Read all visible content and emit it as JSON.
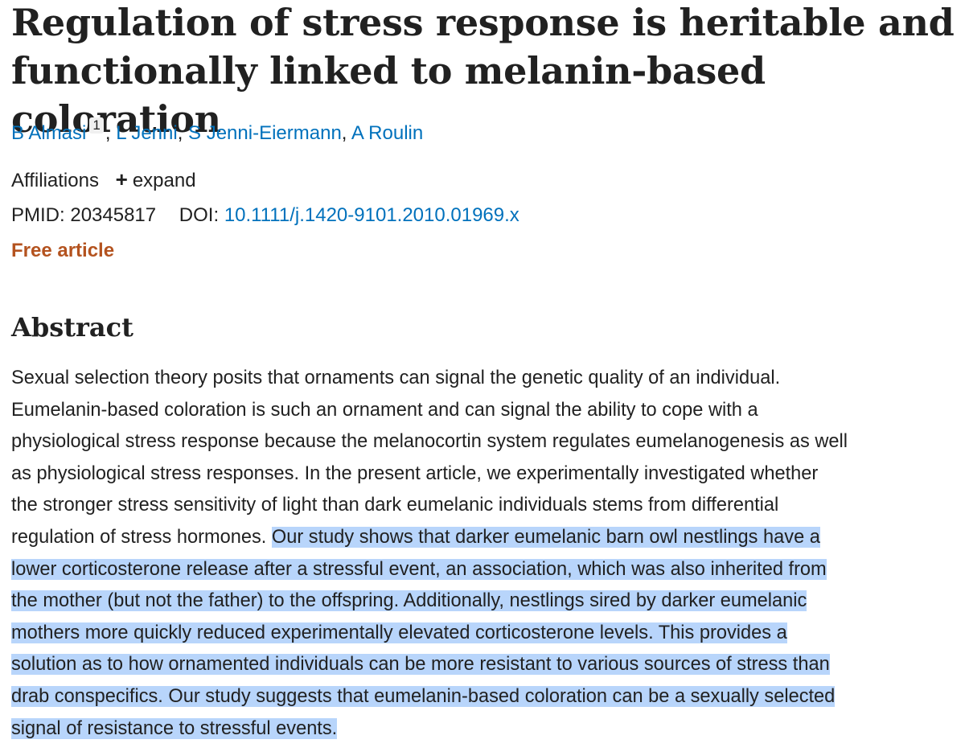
{
  "article": {
    "title": "Regulation of stress response is heritable and functionally linked to melanin-based coloration",
    "authors": [
      {
        "name": "B Almasi",
        "affiliation_ref": "1"
      },
      {
        "name": "L Jenni"
      },
      {
        "name": "S Jenni-Eiermann"
      },
      {
        "name": "A Roulin"
      }
    ],
    "separator": ", ",
    "affiliations_label": "Affiliations",
    "expand_label": "expand",
    "pmid_label": "PMID:",
    "pmid": "20345817",
    "doi_label": "DOI:",
    "doi": "10.1111/j.1420-9101.2010.01969.x",
    "free_article_label": "Free article"
  },
  "abstract": {
    "heading": "Abstract",
    "lines": [
      {
        "text": "Sexual selection theory posits that ornaments can signal the genetic quality of an individual."
      },
      {
        "text": "Eumelanin-based coloration is such an ornament and can signal the ability to cope with a"
      },
      {
        "text": "physiological stress response because the melanocortin system regulates eumelanogenesis as well"
      },
      {
        "text": "as physiological stress responses. In the present article, we experimentally investigated whether"
      },
      {
        "text": "the stronger stress sensitivity of light than dark eumelanic individuals stems from differential"
      },
      {
        "text": "regulation of stress hormones. ",
        "highlighted": "Our study shows that darker eumelanic barn owl nestlings have a"
      },
      {
        "highlighted": "lower corticosterone release after a stressful event, an association, which was also inherited from"
      },
      {
        "highlighted": "the mother (but not the father) to the offspring. Additionally, nestlings sired by darker eumelanic"
      },
      {
        "highlighted": "mothers more quickly reduced experimentally elevated corticosterone levels. This provides a"
      },
      {
        "highlighted": "solution as to how ornamented individuals can be more resistant to various sources of stress than"
      },
      {
        "highlighted": "drab conspecifics. Our study suggests that eumelanin-based coloration can be a sexually selected"
      },
      {
        "highlighted": "signal of resistance to stressful events."
      }
    ]
  },
  "colors": {
    "link": "#0071bc",
    "free_article": "#b4531f",
    "selection_highlight": "#b8d5fb",
    "text": "#212121"
  },
  "icons": {
    "expand": "plus-icon"
  }
}
